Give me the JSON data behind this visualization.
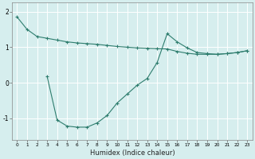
{
  "line_top_x": [
    0,
    1,
    2,
    3,
    4,
    5,
    6,
    7,
    8,
    9,
    10,
    11,
    12,
    13,
    14,
    15,
    16,
    17,
    18,
    19,
    20,
    21,
    22,
    23
  ],
  "line_top_y": [
    1.85,
    1.5,
    1.3,
    1.25,
    1.2,
    1.15,
    1.12,
    1.1,
    1.08,
    1.05,
    1.02,
    1.0,
    0.98,
    0.97,
    0.96,
    0.95,
    0.88,
    0.83,
    0.8,
    0.8,
    0.8,
    0.82,
    0.85,
    0.9
  ],
  "line_v_x": [
    3,
    4,
    5,
    6,
    7,
    8,
    9,
    10,
    11,
    12,
    13,
    14,
    15,
    16,
    17,
    18,
    19,
    20,
    21,
    22,
    23
  ],
  "line_v_y": [
    0.18,
    -1.05,
    -1.22,
    -1.25,
    -1.25,
    -1.13,
    -0.92,
    -0.57,
    -0.32,
    -0.07,
    0.12,
    0.57,
    1.38,
    1.15,
    0.98,
    0.85,
    0.82,
    0.8,
    0.82,
    0.85,
    0.9
  ],
  "color": "#2e7d6e",
  "bg_color": "#d6eeee",
  "grid_color": "#b8d8d8",
  "xlabel": "Humidex (Indice chaleur)",
  "yticks": [
    -1,
    0,
    1,
    2
  ],
  "xticks": [
    0,
    1,
    2,
    3,
    4,
    5,
    6,
    7,
    8,
    9,
    10,
    11,
    12,
    13,
    14,
    15,
    16,
    17,
    18,
    19,
    20,
    21,
    22,
    23
  ],
  "xlim": [
    -0.5,
    23.5
  ],
  "ylim": [
    -1.6,
    2.25
  ]
}
